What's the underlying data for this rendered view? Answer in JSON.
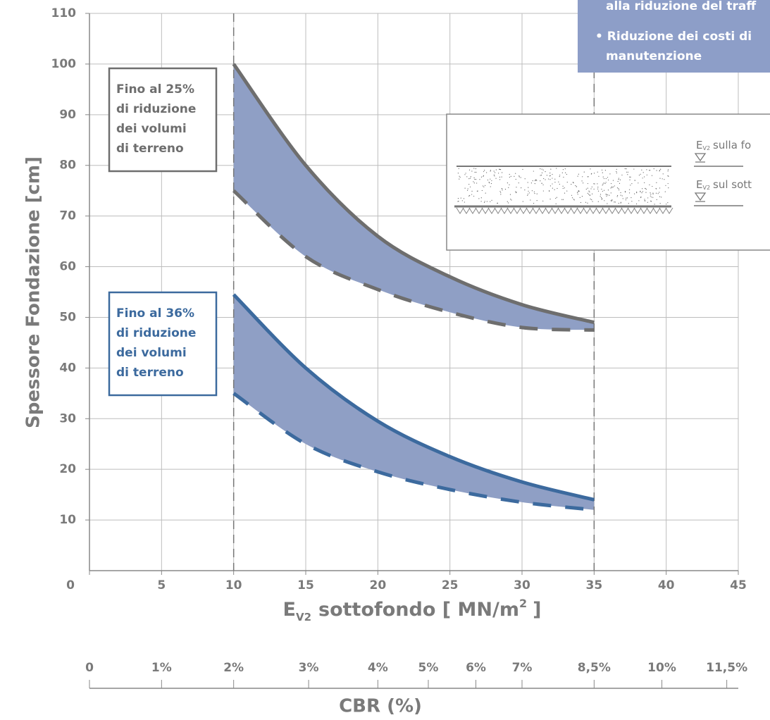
{
  "chart_data": {
    "type": "line",
    "y_label": "Spessore Fondazione [cm]",
    "x_label": {
      "main": "E",
      "sub": "V2",
      "rest": "sottofondo [ MN/m",
      "sup": "2",
      "end": "]"
    },
    "xlim": [
      0,
      45
    ],
    "xticks": [
      0,
      5,
      10,
      15,
      20,
      25,
      30,
      35,
      40,
      45
    ],
    "ylim": [
      0,
      110
    ],
    "yticks": [
      10,
      20,
      30,
      40,
      50,
      60,
      70,
      80,
      90,
      100,
      110
    ],
    "grid": true,
    "reference_lines": [
      10,
      35
    ],
    "x": [
      10,
      15,
      20,
      25,
      30,
      35
    ],
    "series": [
      {
        "color": "#6e6e6e",
        "style": "solid",
        "band_color": "#8f9fc5",
        "values": [
          100,
          80,
          66,
          58,
          52.5,
          49
        ]
      },
      {
        "color": "#6e6e6e",
        "style": "dashed",
        "values": [
          75,
          62,
          55.5,
          51,
          48,
          47.5
        ]
      },
      {
        "color": "#3c6a9e",
        "style": "solid",
        "band_color": "#8f9fc5",
        "values": [
          54.5,
          40,
          29.5,
          22.5,
          17.5,
          14
        ]
      },
      {
        "color": "#3c6a9e",
        "style": "dashed",
        "values": [
          35,
          25,
          19.5,
          16,
          13.5,
          12
        ]
      }
    ],
    "cbr_axis": {
      "label": "CBR (%)",
      "ticks": [
        {
          "value": 0,
          "label": "0",
          "ev2": 0
        },
        {
          "value": 1,
          "label": "1%",
          "ev2": 5
        },
        {
          "value": 2,
          "label": "2%",
          "ev2": 10
        },
        {
          "value": 3,
          "label": "3%",
          "ev2": 15.2
        },
        {
          "value": 4,
          "label": "4%",
          "ev2": 20
        },
        {
          "value": 5,
          "label": "5%",
          "ev2": 23.5
        },
        {
          "value": 6,
          "label": "6%",
          "ev2": 26.8
        },
        {
          "value": 7,
          "label": "7%",
          "ev2": 30
        },
        {
          "value": 8.5,
          "label": "8,5%",
          "ev2": 35
        },
        {
          "value": 10,
          "label": "10%",
          "ev2": 39.7
        },
        {
          "value": 11.5,
          "label": "11,5%",
          "ev2": 44.2
        }
      ]
    },
    "notes": [
      {
        "color": "#6e6e6e",
        "lines": [
          "Fino al 25%",
          "di riduzione",
          "dei volumi",
          "di terreno"
        ]
      },
      {
        "color": "#3c6a9e",
        "lines": [
          "Fino al 36%",
          "di riduzione",
          "dei volumi",
          "di terreno"
        ]
      }
    ],
    "benefits_box": {
      "color": "#8d9ec8",
      "lines": [
        "alla riduzione del traff",
        "• Riduzione dei costi di",
        "manutenzione"
      ]
    },
    "inset": {
      "labels": [
        {
          "main": "E",
          "sub": "V2",
          "rest": "sulla fo"
        },
        {
          "main": "E",
          "sub": "V2",
          "rest": "sul sott"
        }
      ]
    }
  }
}
